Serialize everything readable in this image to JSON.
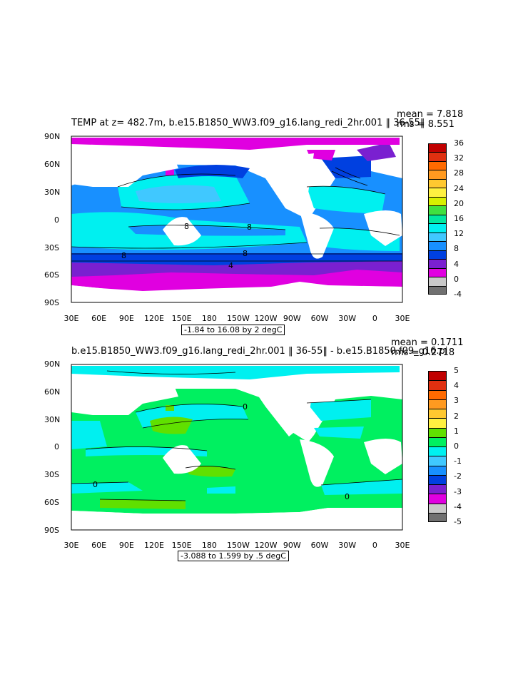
{
  "panel1": {
    "title": "TEMP at z= 482.7m, b.e15.B1850_WW3.f09_g16.lang_redi_2hr.001 ‖ 36-55‖",
    "mean_text": "mean = 7.818",
    "rms_text": "rms = 8.551",
    "range_text": "-1.84 to 16.08 by 2 degC",
    "colorbar_labels": [
      "36",
      "32",
      "28",
      "24",
      "20",
      "16",
      "12",
      "8",
      "4",
      "0",
      "-4"
    ],
    "colorbar_colors": [
      "#c00000",
      "#e03010",
      "#ff6a00",
      "#ff9a20",
      "#ffc830",
      "#fff040",
      "#d8f000",
      "#40e040",
      "#00e8a0",
      "#00f0f0",
      "#40c8ff",
      "#1890ff",
      "#0040e0",
      "#7a20d0",
      "#e000e0",
      "#c8c8c8",
      "#707070"
    ],
    "contour_labels": [
      "8",
      "8",
      "8",
      "8",
      "4"
    ]
  },
  "panel2": {
    "title": "b.e15.B1850_WW3.f09_g16.lang_redi_2hr.001 ‖ 36-55‖ - b.e15.B1850.f09_g16.pi",
    "mean_text": "mean = 0.1711",
    "rms_text": "rms = 0.2718",
    "range_text": "-3.088 to 1.599 by .5 degC",
    "colorbar_labels": [
      "5",
      "4",
      "3",
      "2",
      "1",
      "0",
      "-1",
      "-2",
      "-3",
      "-4",
      "-5"
    ],
    "colorbar_colors": [
      "#c00000",
      "#e03010",
      "#ff6a00",
      "#ff9a20",
      "#ffc830",
      "#fff040",
      "#60e000",
      "#00f060",
      "#00f0f0",
      "#40c8ff",
      "#1890ff",
      "#0040e0",
      "#7a20d0",
      "#e000e0",
      "#c8c8c8",
      "#707070"
    ],
    "contour_labels": [
      "0",
      "0",
      "0"
    ]
  },
  "lat_labels": [
    "90N",
    "60N",
    "30N",
    "0",
    "30S",
    "60S",
    "90S"
  ],
  "lon_labels": [
    "30E",
    "60E",
    "90E",
    "120E",
    "150E",
    "180",
    "150W",
    "120W",
    "90W",
    "60W",
    "30W",
    "0",
    "30E"
  ]
}
